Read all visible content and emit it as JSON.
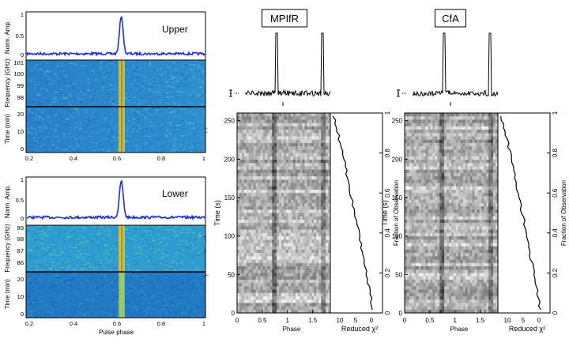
{
  "colors": {
    "profile_left": "#1f2fd6",
    "profile_right": "#000000",
    "axis": "#000000",
    "label_box_border": "#000000"
  },
  "left_panels": {
    "upper": {
      "label": "Upper",
      "profile_ylabel": "Norm. Amp.",
      "freq_ylabel": "Frequency (GHz)",
      "time_ylabel": "Time (min)",
      "profile_yticks": [
        "1",
        "0.5",
        "0"
      ],
      "freq_yticks": [
        "101",
        "100",
        "99",
        "98"
      ],
      "time_yticks": [
        "20",
        "10",
        "0"
      ]
    },
    "lower": {
      "label": "Lower",
      "profile_ylabel": "Norm. Amp.",
      "freq_ylabel": "Frequency (GHz)",
      "time_ylabel": "Time (min)",
      "profile_yticks": [
        "1",
        "0.5",
        "0"
      ],
      "freq_yticks": [
        "89",
        "88",
        "87",
        "86"
      ],
      "time_yticks": [
        "20",
        "10",
        "0"
      ]
    },
    "xticks": [
      "0.2",
      "0.4",
      "0.6",
      "0.8",
      "1"
    ],
    "xlabel": "Pulse phase"
  },
  "right_panels": [
    {
      "label": "MPIfR",
      "time_ylabel": "Time (s)",
      "time_yticks": [
        "250",
        "200",
        "150",
        "100",
        "50",
        "0"
      ],
      "phase_xticks": [
        "0",
        "0.5",
        "1",
        "1.5"
      ],
      "phase_xlabel": "Phase",
      "chi_xticks": [
        "10",
        "5",
        "0"
      ],
      "chi_xlabel": "Reduced χ²",
      "frac_ylabel": "Fraction of Observation",
      "frac_yticks": [
        "1",
        "0.8",
        "0.6",
        "0.4",
        "0.2",
        "0"
      ]
    },
    {
      "label": "CfA",
      "time_ylabel": "Time (s)",
      "time_yticks": [
        "250",
        "200",
        "150",
        "100",
        "50",
        "0"
      ],
      "phase_xticks": [
        "0",
        "0.5",
        "1",
        "1.5"
      ],
      "phase_xlabel": "Phase",
      "chi_xticks": [
        "10",
        "5",
        "0"
      ],
      "chi_xlabel": "Reduced χ²",
      "frac_ylabel": "Fraction of Observation",
      "frac_yticks": [
        "1",
        "0.8",
        "0.6",
        "0.4",
        "0.2",
        "0"
      ]
    }
  ]
}
